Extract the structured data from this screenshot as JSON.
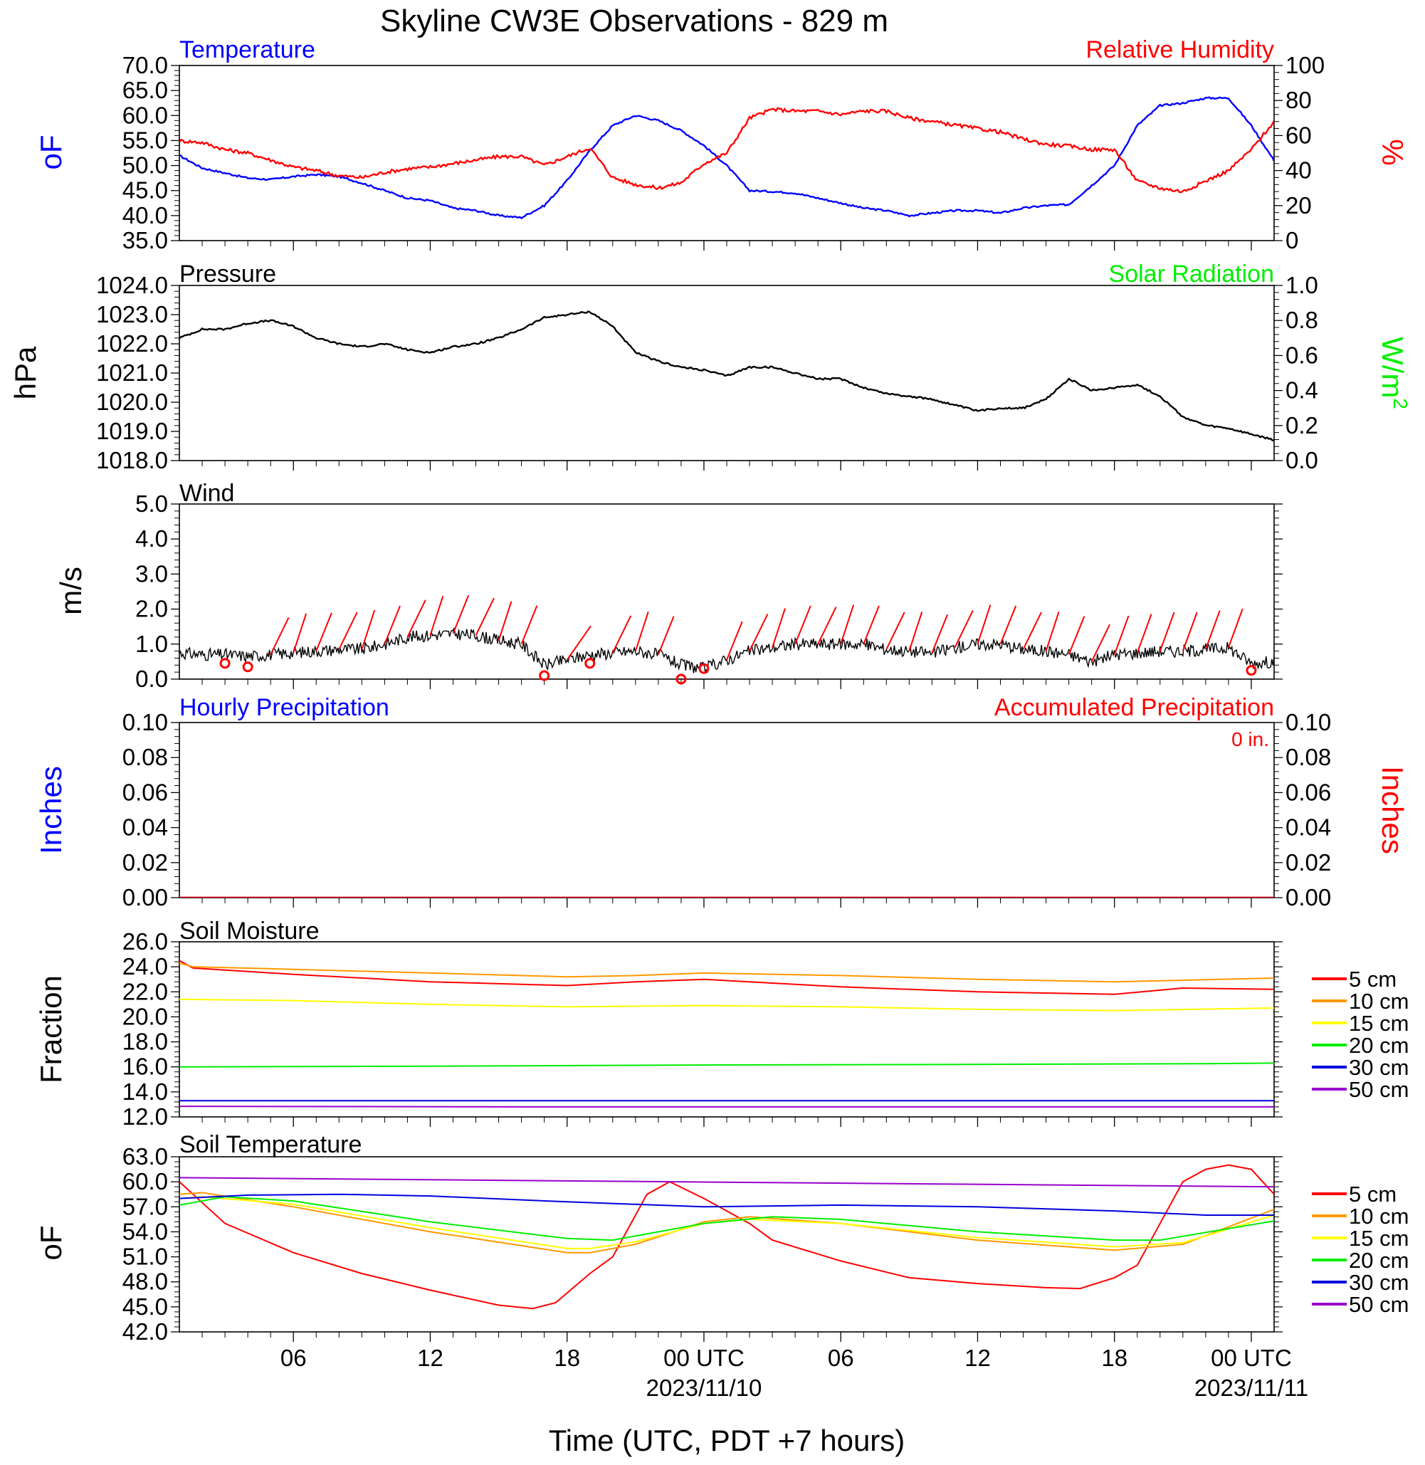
{
  "figure": {
    "title": "Skyline CW3E Observations - 829 m",
    "xaxis_label": "Time (UTC, PDT +7 hours)",
    "x_ticks": [
      "06",
      "12",
      "18",
      "00 UTC",
      "06",
      "12",
      "18",
      "00 UTC"
    ],
    "x_tick_hours": [
      6,
      12,
      18,
      24,
      30,
      36,
      42,
      48
    ],
    "date_labels": [
      "2023/11/10",
      "2023/11/11"
    ],
    "date_label_hours": [
      24,
      48
    ],
    "time_range_hours": [
      1,
      49
    ]
  },
  "chart_data": [
    {
      "id": "temp_rh",
      "type": "line",
      "title_left": "Temperature",
      "title_right": "Relative Humidity",
      "ylabel_left": "oF",
      "ylabel_right": "%",
      "ylim_left": [
        35.0,
        70.0
      ],
      "ylim_right": [
        0,
        100
      ],
      "yticks_left": [
        "35.0",
        "40.0",
        "45.0",
        "50.0",
        "55.0",
        "60.0",
        "65.0",
        "70.0"
      ],
      "yticks_right": [
        "0",
        "20",
        "40",
        "60",
        "80",
        "100"
      ],
      "series": [
        {
          "name": "Temperature",
          "axis": "left",
          "color": "#0000ff",
          "x": [
            1,
            2,
            3,
            4,
            5,
            6,
            7,
            8,
            9,
            10,
            11,
            12,
            13,
            14,
            15,
            16,
            17,
            18,
            19,
            20,
            21,
            22,
            23,
            24,
            25,
            26,
            27,
            28,
            29,
            30,
            31,
            32,
            33,
            34,
            35,
            36,
            37,
            38,
            39,
            40,
            41,
            42,
            43,
            44,
            45,
            46,
            47,
            48,
            49
          ],
          "y": [
            52.0,
            49.5,
            48.5,
            47.5,
            47.2,
            47.8,
            48.2,
            47.8,
            46.5,
            45.0,
            43.5,
            43.0,
            41.5,
            41.0,
            40.0,
            39.6,
            42.0,
            47.0,
            53.0,
            58.0,
            60.0,
            59.0,
            57.0,
            54.0,
            50.0,
            45.0,
            44.8,
            44.5,
            43.5,
            42.5,
            41.5,
            41.0,
            40.0,
            40.5,
            41.0,
            41.0,
            40.5,
            41.5,
            42.0,
            42.2,
            46.0,
            50.0,
            58.0,
            62.0,
            62.5,
            63.5,
            63.5,
            58.0,
            51.0
          ]
        },
        {
          "name": "Relative Humidity",
          "axis": "right",
          "color": "#ff0000",
          "x": [
            1,
            2,
            3,
            4,
            5,
            6,
            7,
            8,
            9,
            10,
            11,
            12,
            13,
            14,
            15,
            16,
            17,
            18,
            19,
            20,
            21,
            22,
            23,
            24,
            25,
            26,
            27,
            28,
            29,
            30,
            31,
            32,
            33,
            34,
            35,
            36,
            37,
            38,
            39,
            40,
            41,
            42,
            43,
            44,
            45,
            46,
            47,
            48,
            49
          ],
          "y": [
            57,
            56,
            52,
            50,
            46,
            42,
            40,
            37,
            36,
            39,
            41,
            42,
            44,
            46,
            48,
            48,
            43,
            48,
            53,
            36,
            32,
            30,
            33,
            44,
            50,
            70,
            75,
            74,
            74,
            72,
            74,
            74,
            70,
            68,
            66,
            64,
            62,
            58,
            55,
            54,
            52,
            52,
            34,
            30,
            28,
            34,
            40,
            52,
            68
          ]
        }
      ]
    },
    {
      "id": "pressure",
      "type": "line",
      "title_left": "Pressure",
      "title_right": "Solar Radiation",
      "ylabel_left": "hPa",
      "ylabel_right": "W/m",
      "ylabel_right_sup": "2",
      "ylim_left": [
        1018.0,
        1024.0
      ],
      "ylim_right": [
        0.0,
        1.0
      ],
      "yticks_left": [
        "1018.0",
        "1019.0",
        "1020.0",
        "1021.0",
        "1022.0",
        "1023.0",
        "1024.0"
      ],
      "yticks_right": [
        "0.0",
        "0.2",
        "0.4",
        "0.6",
        "0.8",
        "1.0"
      ],
      "series": [
        {
          "name": "Pressure",
          "axis": "left",
          "color": "#000000",
          "x": [
            1,
            2,
            3,
            4,
            5,
            6,
            7,
            8,
            9,
            10,
            11,
            12,
            13,
            14,
            15,
            16,
            17,
            18,
            19,
            20,
            21,
            22,
            23,
            24,
            25,
            26,
            27,
            28,
            29,
            30,
            31,
            32,
            33,
            34,
            35,
            36,
            37,
            38,
            39,
            40,
            41,
            42,
            43,
            44,
            45,
            46,
            47,
            48,
            49
          ],
          "y": [
            1022.2,
            1022.5,
            1022.5,
            1022.7,
            1022.8,
            1022.6,
            1022.2,
            1022.0,
            1021.9,
            1022.0,
            1021.8,
            1021.7,
            1021.9,
            1022.0,
            1022.2,
            1022.5,
            1022.9,
            1023.0,
            1023.1,
            1022.6,
            1021.7,
            1021.4,
            1021.2,
            1021.1,
            1020.9,
            1021.2,
            1021.2,
            1021.0,
            1020.8,
            1020.8,
            1020.5,
            1020.3,
            1020.2,
            1020.1,
            1019.9,
            1019.7,
            1019.8,
            1019.8,
            1020.1,
            1020.8,
            1020.4,
            1020.5,
            1020.6,
            1020.2,
            1019.5,
            1019.2,
            1019.1,
            1018.9,
            1018.7
          ]
        }
      ]
    },
    {
      "id": "wind",
      "type": "line",
      "title_left": "Wind",
      "ylabel_left": "m/s",
      "ylim_left": [
        0.0,
        5.0
      ],
      "yticks_left": [
        "0.0",
        "1.0",
        "2.0",
        "3.0",
        "4.0",
        "5.0"
      ],
      "series": [
        {
          "name": "Wind",
          "axis": "left",
          "color": "#000000",
          "x": [
            1,
            2,
            3,
            4,
            5,
            6,
            7,
            8,
            9,
            10,
            11,
            12,
            13,
            14,
            15,
            16,
            17,
            18,
            19,
            20,
            21,
            22,
            23,
            24,
            25,
            26,
            27,
            28,
            29,
            30,
            31,
            32,
            33,
            34,
            35,
            36,
            37,
            38,
            39,
            40,
            41,
            42,
            43,
            44,
            45,
            46,
            47,
            48,
            49
          ],
          "y": [
            0.75,
            0.7,
            0.7,
            0.65,
            0.7,
            0.75,
            0.8,
            0.85,
            0.85,
            1.0,
            1.2,
            1.25,
            1.3,
            1.25,
            1.1,
            1.0,
            0.4,
            0.55,
            0.7,
            0.75,
            0.8,
            0.7,
            0.4,
            0.3,
            0.55,
            0.8,
            0.9,
            1.0,
            1.0,
            1.0,
            1.0,
            0.85,
            0.8,
            0.75,
            0.9,
            1.0,
            1.0,
            0.85,
            0.8,
            0.7,
            0.5,
            0.7,
            0.75,
            0.8,
            0.8,
            0.85,
            0.9,
            0.45,
            0.5
          ]
        }
      ],
      "barbs_hours": [
        3,
        4,
        5,
        6,
        7,
        8,
        9,
        10,
        11,
        12,
        13,
        14,
        15,
        16,
        17,
        18,
        19,
        20,
        21,
        22,
        23,
        24,
        25,
        26,
        27,
        28,
        29,
        30,
        31,
        32,
        33,
        34,
        35,
        36,
        37,
        38,
        39,
        40,
        41,
        42,
        43,
        44,
        45,
        46,
        47,
        48
      ],
      "barbs_color": "#ff0000",
      "calm_hours": [
        3,
        4,
        17,
        19,
        23,
        24,
        48
      ],
      "calm_values": [
        0.45,
        0.35,
        0.1,
        0.45,
        0.0,
        0.3,
        0.25
      ]
    },
    {
      "id": "precip",
      "type": "line",
      "title_left": "Hourly Precipitation",
      "title_right": "Accumulated Precipitation",
      "annotation": "0 in.",
      "ylabel_left": "Inches",
      "ylabel_right": "Inches",
      "ylim_left": [
        0.0,
        0.1
      ],
      "ylim_right": [
        0.0,
        0.1
      ],
      "yticks_left": [
        "0.00",
        "0.02",
        "0.04",
        "0.06",
        "0.08",
        "0.10"
      ],
      "yticks_right": [
        "0.00",
        "0.02",
        "0.04",
        "0.06",
        "0.08",
        "0.10"
      ],
      "series": [
        {
          "name": "Hourly Precipitation",
          "axis": "left",
          "color": "#0000ff",
          "x": [
            1,
            49
          ],
          "y": [
            0,
            0
          ]
        },
        {
          "name": "Accumulated Precipitation",
          "axis": "right",
          "color": "#ff0000",
          "x": [
            1,
            49
          ],
          "y": [
            0,
            0
          ]
        }
      ]
    },
    {
      "id": "soil_moisture",
      "type": "line",
      "title_left": "Soil Moisture",
      "ylabel_left": "Fraction",
      "ylim_left": [
        12.0,
        26.0
      ],
      "yticks_left": [
        "12.0",
        "14.0",
        "16.0",
        "18.0",
        "20.0",
        "22.0",
        "24.0",
        "26.0"
      ],
      "series": [
        {
          "name": "5 cm",
          "color": "#ff0000",
          "x": [
            1,
            1.6,
            6,
            12,
            18,
            21,
            24,
            30,
            36,
            42,
            45,
            49
          ],
          "y": [
            24.5,
            23.9,
            23.4,
            22.8,
            22.5,
            22.8,
            23.0,
            22.4,
            22.0,
            21.8,
            22.3,
            22.2
          ]
        },
        {
          "name": "10 cm",
          "color": "#ff9900",
          "x": [
            1,
            1.6,
            6,
            12,
            18,
            21,
            24,
            30,
            36,
            42,
            49
          ],
          "y": [
            24.3,
            24.0,
            23.8,
            23.5,
            23.2,
            23.3,
            23.5,
            23.3,
            23.0,
            22.8,
            23.1
          ]
        },
        {
          "name": "15 cm",
          "color": "#ffff00",
          "x": [
            1,
            6,
            12,
            18,
            24,
            30,
            36,
            42,
            49
          ],
          "y": [
            21.4,
            21.3,
            21.0,
            20.8,
            20.9,
            20.8,
            20.6,
            20.5,
            20.7
          ]
        },
        {
          "name": "20 cm",
          "color": "#00ee00",
          "x": [
            1,
            12,
            24,
            36,
            46,
            49
          ],
          "y": [
            16.0,
            16.05,
            16.15,
            16.2,
            16.25,
            16.3
          ]
        },
        {
          "name": "30 cm",
          "color": "#0000dd",
          "x": [
            1,
            49
          ],
          "y": [
            13.3,
            13.3
          ]
        },
        {
          "name": "50 cm",
          "color": "#9900cc",
          "x": [
            1,
            16,
            49
          ],
          "y": [
            12.85,
            12.8,
            12.8
          ]
        }
      ]
    },
    {
      "id": "soil_temperature",
      "type": "line",
      "title_left": "Soil Temperature",
      "ylabel_left": "oF",
      "ylim_left": [
        42.0,
        63.0
      ],
      "yticks_left": [
        "42.0",
        "45.0",
        "48.0",
        "51.0",
        "54.0",
        "57.0",
        "60.0",
        "63.0"
      ],
      "series": [
        {
          "name": "5 cm",
          "color": "#ff0000",
          "x": [
            1,
            3,
            6,
            9,
            12,
            15,
            16.5,
            17.5,
            19,
            20,
            21.5,
            22.5,
            24,
            25,
            26,
            27,
            30,
            33,
            36,
            39,
            40.5,
            42,
            43,
            44,
            45,
            46,
            47,
            48,
            49
          ],
          "y": [
            60.0,
            55.0,
            51.5,
            49.0,
            47.0,
            45.2,
            44.8,
            45.5,
            49.0,
            51.0,
            58.5,
            60.0,
            58.0,
            56.5,
            55.0,
            53.0,
            50.5,
            48.5,
            47.8,
            47.3,
            47.2,
            48.5,
            50.0,
            55.0,
            60.0,
            61.5,
            62.0,
            61.5,
            58.5
          ]
        },
        {
          "name": "10 cm",
          "color": "#ff9900",
          "x": [
            1,
            2,
            6,
            12,
            18,
            19,
            21,
            24,
            26,
            30,
            36,
            42,
            45,
            49
          ],
          "y": [
            58.5,
            58.7,
            57.0,
            54.0,
            51.5,
            51.5,
            52.5,
            55.2,
            55.8,
            55.0,
            53.0,
            51.8,
            52.5,
            56.7
          ]
        },
        {
          "name": "15 cm",
          "color": "#ffff00",
          "x": [
            1,
            2,
            6,
            12,
            18,
            19,
            21,
            24,
            26,
            30,
            36,
            42,
            45,
            49
          ],
          "y": [
            58.0,
            58.2,
            57.3,
            54.5,
            52.0,
            52.0,
            52.8,
            55.0,
            55.5,
            55.0,
            53.3,
            52.2,
            52.7,
            56.0
          ]
        },
        {
          "name": "20 cm",
          "color": "#00ee00",
          "x": [
            1,
            3,
            6,
            12,
            18,
            20,
            24,
            27,
            30,
            36,
            42,
            44,
            49
          ],
          "y": [
            57.2,
            58.2,
            57.7,
            55.2,
            53.2,
            53.0,
            55.0,
            55.8,
            55.5,
            54.0,
            53.0,
            53.0,
            55.3
          ]
        },
        {
          "name": "30 cm",
          "color": "#0000dd",
          "x": [
            1,
            4,
            8,
            12,
            18,
            24,
            30,
            36,
            42,
            46,
            49
          ],
          "y": [
            58.0,
            58.4,
            58.5,
            58.3,
            57.6,
            57.0,
            57.2,
            57.0,
            56.5,
            56.0,
            56.0
          ]
        },
        {
          "name": "50 cm",
          "color": "#9900cc",
          "x": [
            1,
            49
          ],
          "y": [
            60.5,
            59.4
          ]
        }
      ]
    }
  ]
}
